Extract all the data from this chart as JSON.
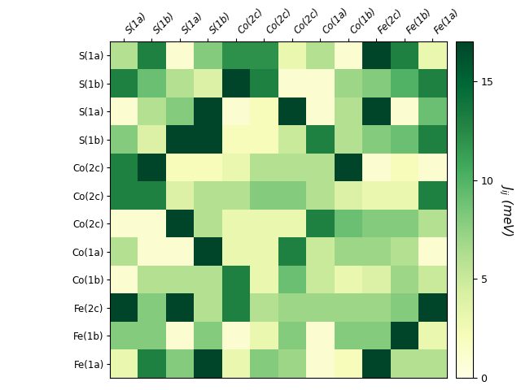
{
  "row_labels": [
    "S(1a)",
    "S(1b)",
    "S(1a)",
    "S(1b)",
    "Co(2c)",
    "Co(2c)",
    "Co(2c)",
    "Co(1a)",
    "Co(1b)",
    "Fe(2c)",
    "Fe(1b)",
    "Fe(1a)"
  ],
  "col_labels": [
    "S(1a)",
    "S(1b)",
    "S(1a)",
    "S(1b)",
    "Co(2c)",
    "Co(2c)",
    "Co(2c)",
    "Co(1a)",
    "Co(1b)",
    "Fe(2c)",
    "Fe(1b)",
    "Fe(1a)"
  ],
  "matrix": [
    [
      6,
      13,
      1,
      8,
      12,
      12,
      3,
      6,
      1,
      17,
      13,
      3
    ],
    [
      13,
      9,
      6,
      4,
      17,
      13,
      1,
      1,
      7,
      8,
      10,
      13
    ],
    [
      1,
      6,
      8,
      17,
      1,
      2,
      17,
      1,
      6,
      17,
      1,
      9
    ],
    [
      8,
      4,
      17,
      17,
      2,
      2,
      5,
      13,
      6,
      8,
      9,
      13
    ],
    [
      13,
      17,
      2,
      2,
      3,
      6,
      6,
      6,
      17,
      1,
      2,
      1
    ],
    [
      13,
      13,
      4,
      6,
      6,
      8,
      8,
      6,
      4,
      3,
      3,
      13
    ],
    [
      1,
      1,
      17,
      6,
      3,
      3,
      3,
      13,
      9,
      8,
      8,
      6
    ],
    [
      6,
      1,
      1,
      17,
      3,
      3,
      13,
      5,
      7,
      7,
      6,
      1
    ],
    [
      1,
      6,
      6,
      6,
      13,
      3,
      9,
      5,
      3,
      4,
      7,
      5
    ],
    [
      17,
      8,
      17,
      6,
      13,
      6,
      7,
      7,
      7,
      7,
      8,
      17
    ],
    [
      8,
      8,
      1,
      8,
      1,
      3,
      8,
      1,
      8,
      8,
      17,
      3
    ],
    [
      3,
      13,
      8,
      17,
      3,
      8,
      7,
      1,
      2,
      17,
      6,
      6
    ]
  ],
  "vmin": 0,
  "vmax": 17,
  "cmap": "YlGn",
  "colorbar_label": "$J_{ij}$ (meV)",
  "colorbar_ticks": [
    0,
    5,
    10,
    15
  ],
  "figsize": [
    6.4,
    4.8
  ],
  "dpi": 100
}
